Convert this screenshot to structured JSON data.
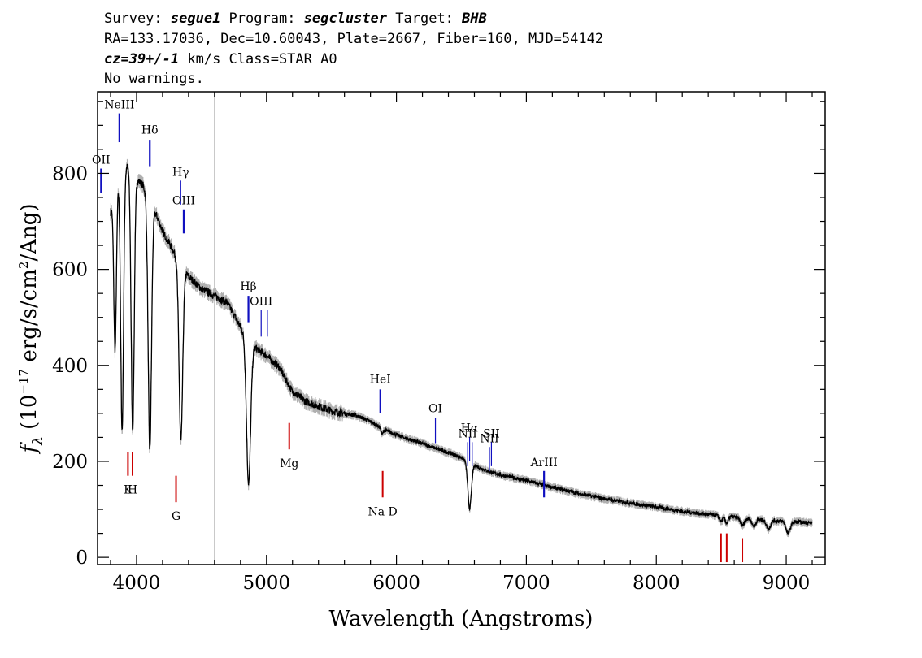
{
  "header": {
    "line1": {
      "survey_label": "Survey: ",
      "survey": "segue1",
      "program_label": " Program: ",
      "program": "segcluster",
      "target_label": " Target: ",
      "target": "BHB"
    },
    "line2": "RA=133.17036, Dec=10.60043, Plate=2667, Fiber=160, MJD=54142",
    "line3": {
      "cz": "cz=39+/-1",
      "rest": " km/s Class=STAR A0"
    },
    "line4": "No warnings."
  },
  "chart_data": {
    "type": "line",
    "xlabel": "Wavelength (Angstroms)",
    "ylabel": "f_λ (10^-17 erg/s/cm^2/Ang)",
    "xlim": [
      3700,
      9300
    ],
    "ylim": [
      -15,
      970
    ],
    "xticks": [
      4000,
      5000,
      6000,
      7000,
      8000,
      9000
    ],
    "yticks": [
      0,
      200,
      400,
      600,
      800
    ],
    "grid": false,
    "vertical_marker_x": 4600,
    "continuum": [
      [
        3800,
        720
      ],
      [
        3850,
        780
      ],
      [
        3900,
        812
      ],
      [
        3950,
        818
      ],
      [
        4000,
        790
      ],
      [
        4050,
        775
      ],
      [
        4100,
        745
      ],
      [
        4150,
        715
      ],
      [
        4200,
        680
      ],
      [
        4250,
        655
      ],
      [
        4300,
        630
      ],
      [
        4400,
        585
      ],
      [
        4500,
        560
      ],
      [
        4600,
        545
      ],
      [
        4700,
        530
      ],
      [
        4800,
        480
      ],
      [
        4900,
        440
      ],
      [
        5000,
        420
      ],
      [
        5100,
        395
      ],
      [
        5200,
        345
      ],
      [
        5300,
        325
      ],
      [
        5400,
        315
      ],
      [
        5500,
        305
      ],
      [
        5600,
        300
      ],
      [
        5700,
        295
      ],
      [
        5800,
        283
      ],
      [
        5900,
        267
      ],
      [
        6000,
        255
      ],
      [
        6200,
        237
      ],
      [
        6400,
        218
      ],
      [
        6500,
        208
      ],
      [
        6600,
        192
      ],
      [
        6700,
        180
      ],
      [
        6800,
        172
      ],
      [
        7000,
        160
      ],
      [
        7200,
        146
      ],
      [
        7400,
        133
      ],
      [
        7600,
        122
      ],
      [
        7800,
        113
      ],
      [
        8000,
        105
      ],
      [
        8200,
        96
      ],
      [
        8400,
        89
      ],
      [
        8600,
        84
      ],
      [
        8800,
        78
      ],
      [
        9000,
        75
      ],
      [
        9200,
        72
      ]
    ],
    "absorption_lines": [
      {
        "x": 3835,
        "depth": 330,
        "width": 10
      },
      {
        "x": 3889,
        "depth": 540,
        "width": 11
      },
      {
        "x": 3970,
        "depth": 540,
        "width": 12
      },
      {
        "x": 4102,
        "depth": 520,
        "width": 13
      },
      {
        "x": 4341,
        "depth": 370,
        "width": 14
      },
      {
        "x": 4862,
        "depth": 300,
        "width": 16
      },
      {
        "x": 5890,
        "depth": 12,
        "width": 8
      },
      {
        "x": 6563,
        "depth": 95,
        "width": 14
      },
      {
        "x": 8498,
        "depth": 12,
        "width": 12
      },
      {
        "x": 8542,
        "depth": 14,
        "width": 12
      },
      {
        "x": 8662,
        "depth": 16,
        "width": 14
      },
      {
        "x": 8750,
        "depth": 14,
        "width": 14
      },
      {
        "x": 8863,
        "depth": 18,
        "width": 15
      },
      {
        "x": 9015,
        "depth": 25,
        "width": 16
      }
    ],
    "emission_labels": [
      {
        "label": "OII",
        "x": 3727,
        "y1": 760,
        "y2": 810,
        "ty": 820,
        "thin": false
      },
      {
        "label": "NeIII",
        "x": 3868,
        "y1": 865,
        "y2": 925,
        "ty": 935,
        "thin": false
      },
      {
        "label": "Hδ",
        "x": 4102,
        "y1": 815,
        "y2": 870,
        "ty": 883,
        "thin": false
      },
      {
        "label": "Hγ",
        "x": 4340,
        "y1": 735,
        "y2": 785,
        "ty": 795,
        "thin": true
      },
      {
        "label": "OIII",
        "x": 4363,
        "y1": 675,
        "y2": 725,
        "ty": 736,
        "thin": false
      },
      {
        "label": "Hβ",
        "x": 4861,
        "y1": 490,
        "y2": 545,
        "ty": 557,
        "thin": false
      },
      {
        "label": "OIII",
        "x": 4959,
        "y1": 460,
        "y2": 515,
        "ty": 526,
        "thin": true
      },
      {
        "label": "",
        "x": 5007,
        "y1": 460,
        "y2": 515,
        "ty": 0,
        "thin": true
      },
      {
        "label": "HeI",
        "x": 5876,
        "y1": 300,
        "y2": 350,
        "ty": 363,
        "thin": false
      },
      {
        "label": "OI",
        "x": 6300,
        "y1": 238,
        "y2": 290,
        "ty": 302,
        "thin": true
      },
      {
        "label": "NII",
        "x": 6548,
        "y1": 190,
        "y2": 240,
        "ty": 250,
        "thin": true
      },
      {
        "label": "Hα",
        "x": 6563,
        "y1": 200,
        "y2": 250,
        "ty": 262,
        "thin": true
      },
      {
        "label": "",
        "x": 6583,
        "y1": 190,
        "y2": 240,
        "ty": 0,
        "thin": true
      },
      {
        "label": "NII",
        "x": 6716,
        "y1": 180,
        "y2": 230,
        "ty": 240,
        "thin": true
      },
      {
        "label": "SII",
        "x": 6731,
        "y1": 190,
        "y2": 240,
        "ty": 250,
        "thin": true
      },
      {
        "label": "ArIII",
        "x": 7136,
        "y1": 125,
        "y2": 180,
        "ty": 190,
        "thin": false
      }
    ],
    "absorption_labels": [
      {
        "label": "K",
        "x": 3934,
        "y1": 170,
        "y2": 220
      },
      {
        "label": "H",
        "x": 3969,
        "y1": 170,
        "y2": 220
      },
      {
        "label": "G",
        "x": 4304,
        "y1": 115,
        "y2": 170
      },
      {
        "label": "Mg",
        "x": 5175,
        "y1": 225,
        "y2": 280
      },
      {
        "label": "Na D",
        "x": 5894,
        "y1": 125,
        "y2": 180
      },
      {
        "label": "",
        "x": 8498,
        "y1": -10,
        "y2": 50
      },
      {
        "label": "",
        "x": 8542,
        "y1": -10,
        "y2": 50
      },
      {
        "label": "",
        "x": 8662,
        "y1": -10,
        "y2": 40
      }
    ],
    "colors": {
      "flux": "#000000",
      "error": "#b0b0b0",
      "emission": "#1010c0",
      "absorption": "#cc0000",
      "marker": "#b8b8b8"
    }
  }
}
